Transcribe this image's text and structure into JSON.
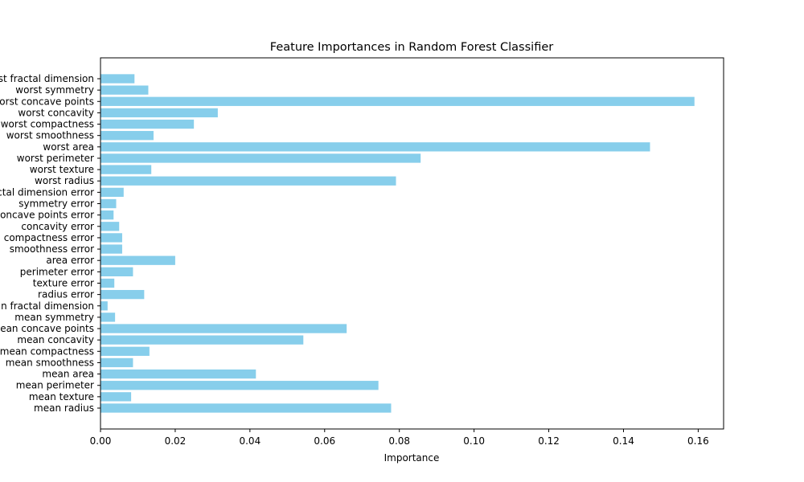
{
  "chart_data": {
    "type": "bar",
    "orientation": "horizontal",
    "title": "Feature Importances in Random Forest Classifier",
    "xlabel": "Importance",
    "ylabel": "",
    "xlim": [
      0,
      0.1668
    ],
    "xticks": [
      "0.00",
      "0.02",
      "0.04",
      "0.06",
      "0.08",
      "0.10",
      "0.12",
      "0.14",
      "0.16"
    ],
    "bar_color": "#87ceeb",
    "grid": false,
    "categories": [
      "mean radius",
      "mean texture",
      "mean perimeter",
      "mean area",
      "mean smoothness",
      "mean compactness",
      "mean concavity",
      "mean concave points",
      "mean symmetry",
      "mean fractal dimension",
      "radius error",
      "texture error",
      "perimeter error",
      "area error",
      "smoothness error",
      "compactness error",
      "concavity error",
      "concave points error",
      "symmetry error",
      "fractal dimension error",
      "worst radius",
      "worst texture",
      "worst perimeter",
      "worst area",
      "worst smoothness",
      "worst compactness",
      "worst concavity",
      "worst concave points",
      "worst symmetry",
      "worst fractal dimension"
    ],
    "values": [
      0.0778,
      0.0082,
      0.0744,
      0.0416,
      0.0087,
      0.0131,
      0.0543,
      0.0659,
      0.0039,
      0.0019,
      0.0117,
      0.0037,
      0.0087,
      0.02,
      0.0058,
      0.0058,
      0.005,
      0.0035,
      0.0042,
      0.0062,
      0.0791,
      0.0136,
      0.0857,
      0.1471,
      0.0142,
      0.025,
      0.0314,
      0.159,
      0.0128,
      0.0091
    ]
  }
}
